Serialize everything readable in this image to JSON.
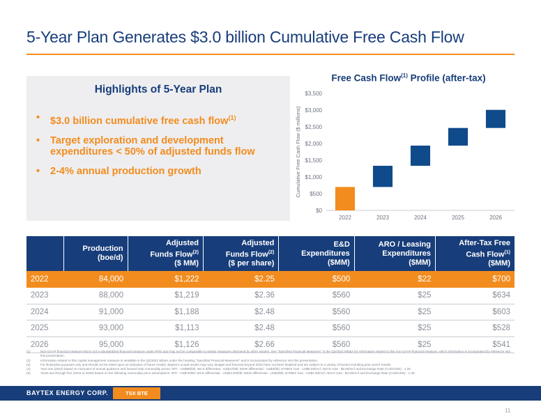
{
  "slide": {
    "title": "5-Year Plan Generates $3.0 billion Cumulative Free Cash Flow",
    "page_number": "11"
  },
  "highlights": {
    "title": "Highlights of 5-Year Plan",
    "bullet_glyph": "•",
    "items": [
      {
        "text": "$3.0 billion cumulative free cash flow",
        "sup": "(1)"
      },
      {
        "text": "Target exploration and development expenditures < 50% of adjusted funds flow",
        "sup": ""
      },
      {
        "text": "2-4% annual production growth",
        "sup": ""
      }
    ]
  },
  "chart_data": {
    "type": "bar",
    "style": "waterfall",
    "title": "Free Cash Flow",
    "title_sup": "(1)",
    "title_suffix": " Profile (after-tax)",
    "xlabel": "",
    "ylabel": "Cumulative Free Cash Flow ($ millions)",
    "categories": [
      "2022",
      "2023",
      "2024",
      "2025",
      "2026"
    ],
    "series": [
      {
        "values": [
          700,
          634,
          603,
          528,
          541
        ]
      }
    ],
    "ylim": [
      0,
      3500
    ],
    "yticks": [
      0,
      500,
      1000,
      1500,
      2000,
      2500,
      3000,
      3500
    ],
    "ytick_labels": [
      "$0",
      "$500",
      "$1,000",
      "$1,500",
      "$2,000",
      "$2,500",
      "$3,000",
      "$3,500"
    ],
    "bar_colors": [
      "#f28c1e",
      "#0f4a8a",
      "#0f4a8a",
      "#0f4a8a",
      "#0f4a8a"
    ],
    "grid": false,
    "legend": "none"
  },
  "table": {
    "headers": [
      {
        "text": "",
        "sup": "",
        "lines": []
      },
      {
        "lines": [
          "Production",
          "(boe/d)"
        ]
      },
      {
        "lines": [
          "Adjusted",
          "Funds Flow",
          "($ MM)"
        ],
        "sup_line": 1,
        "sup": "(2)"
      },
      {
        "lines": [
          "Adjusted",
          "Funds Flow",
          "($ per share)"
        ],
        "sup_line": 1,
        "sup": "(2)"
      },
      {
        "lines": [
          "E&D",
          "Expenditures",
          "($MM)"
        ]
      },
      {
        "lines": [
          "ARO / Leasing",
          "Expenditures",
          "($MM)"
        ]
      },
      {
        "lines": [
          "After-Tax Free",
          "Cash Flow",
          "($MM)"
        ],
        "sup_line": 1,
        "sup": "(1)"
      }
    ],
    "rows": [
      [
        "2022",
        "84,000",
        "$1,222",
        "$2.25",
        "$500",
        "$22",
        "$700"
      ],
      [
        "2023",
        "88,000",
        "$1,219",
        "$2.36",
        "$560",
        "$25",
        "$634"
      ],
      [
        "2024",
        "91,000",
        "$1,188",
        "$2.48",
        "$560",
        "$25",
        "$603"
      ],
      [
        "2025",
        "93,000",
        "$1,113",
        "$2.48",
        "$560",
        "$25",
        "$528"
      ],
      [
        "2026",
        "95,000",
        "$1,126",
        "$2.66",
        "$560",
        "$25",
        "$541"
      ]
    ],
    "highlight_row": 0
  },
  "footnotes": [
    {
      "num": "(1)",
      "text": "Non-GAAP financial measure that is not a standardized financial measure under IFRS and may not be comparable to similar measures disclosed by other issuers. See \"Specified Financial Measures\" in the Q2/2022 MD&A for information related to this non-GAAP financial measure, which information is incorporated by reference into this presentation."
    },
    {
      "num": "(2)",
      "text": "Information related to this capital management measure is available in the Q2/2022 MD&A under the heading \"Specified Financial Measures\" and is incorporated by reference into this presentation."
    },
    {
      "num": "(3)",
      "text": "For illustrative purposes only and should not be relied upon as indicative of future results. Baytex's actual results may vary. Budget and forecast beyond 2022 have not been finalized and are subject to a variety of factors including prior year's results."
    },
    {
      "num": "(4)",
      "text": "Year one (2022) based on mid-point of annual guidance and forward strip commodity prices: WTI - US$98/bbl; WCS differential - US$17/bbl; MSW differential - US$3/bbl; NYMEX Gas - US$6.60/mcf; AECO Gas - $5.80/mcf and Exchange Rate (CAD/USD) - 1.28."
    },
    {
      "num": "(5)",
      "text": "Years two through five (2023 to 2026) based on the following commodity price assumptions: WTI - US$75/bbl; WCS differential - US$12.50/bbl; MSW differential - US$4/bbl; NYMEX Gas - US$4.00/mcf; AECO Gas - $4.00/mcf and Exchange Rate (CAD/USD) - 1.25."
    }
  ],
  "footer": {
    "brand": "BAYTEX ENERGY CORP.",
    "ticker": "TSX BTE"
  },
  "colors": {
    "navy": "#173d7a",
    "orange": "#f28c1e",
    "bar_navy": "#0f4a8a",
    "panel_grey": "#eeeef0"
  }
}
